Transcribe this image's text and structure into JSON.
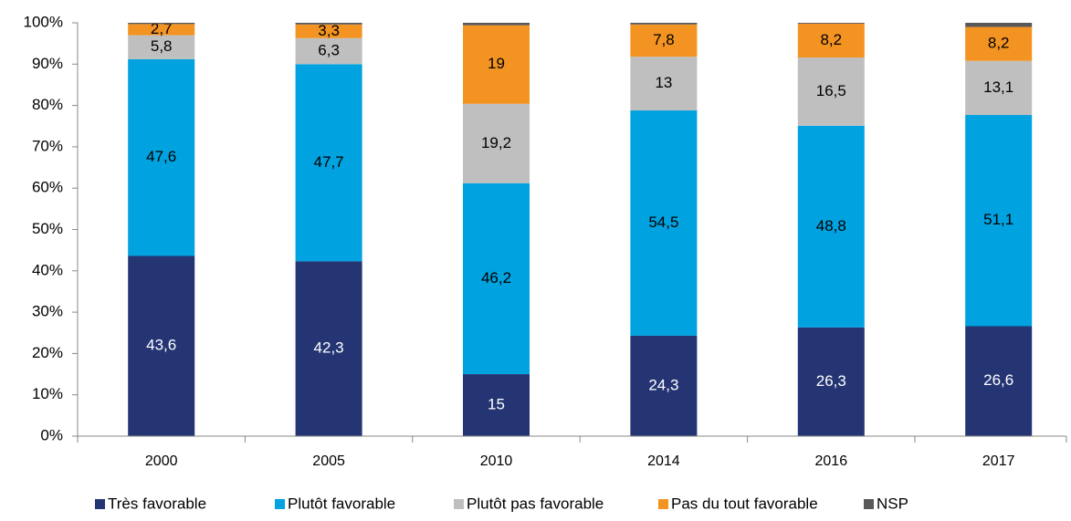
{
  "chart_data": {
    "type": "stacked_bar",
    "categories": [
      "2000",
      "2005",
      "2010",
      "2014",
      "2016",
      "2017"
    ],
    "series": [
      {
        "name": "Très favorable",
        "color": "#253574",
        "values": [
          43.6,
          42.3,
          15,
          24.3,
          26.3,
          26.6
        ],
        "value_labels": [
          "43,6",
          "42,3",
          "15",
          "24,3",
          "26,3",
          "26,6"
        ]
      },
      {
        "name": "Plutôt favorable",
        "color": "#00a2df",
        "values": [
          47.6,
          47.7,
          46.2,
          54.5,
          48.8,
          51.1
        ],
        "value_labels": [
          "47,6",
          "47,7",
          "46,2",
          "54,5",
          "48,8",
          "51,1"
        ]
      },
      {
        "name": "Plutôt pas favorable",
        "color": "#bfbfbf",
        "values": [
          5.8,
          6.3,
          19.2,
          13,
          16.5,
          13.1
        ],
        "value_labels": [
          "5,8",
          "6,3",
          "19,2",
          "13",
          "16,5",
          "13,1"
        ]
      },
      {
        "name": "Pas du tout favorable",
        "color": "#f39322",
        "values": [
          2.7,
          3.3,
          19,
          7.8,
          8.2,
          8.2
        ],
        "value_labels": [
          "2,7",
          "3,3",
          "19",
          "7,8",
          "8,2",
          "8,2"
        ]
      },
      {
        "name": "NSP",
        "color": "#595959",
        "values": [
          0.3,
          0.4,
          0.6,
          0.4,
          0.2,
          1
        ]
      }
    ],
    "ylim": [
      0,
      100
    ],
    "yticks": [
      {
        "value": 0,
        "label": "0%"
      },
      {
        "value": 10,
        "label": "10%"
      },
      {
        "value": 20,
        "label": "20%"
      },
      {
        "value": 30,
        "label": "30%"
      },
      {
        "value": 40,
        "label": "40%"
      },
      {
        "value": 50,
        "label": "50%"
      },
      {
        "value": 60,
        "label": "60%"
      },
      {
        "value": 70,
        "label": "70%"
      },
      {
        "value": 80,
        "label": "80%"
      },
      {
        "value": 90,
        "label": "90%"
      },
      {
        "value": 100,
        "label": "100%"
      }
    ],
    "legend": "bottom"
  }
}
